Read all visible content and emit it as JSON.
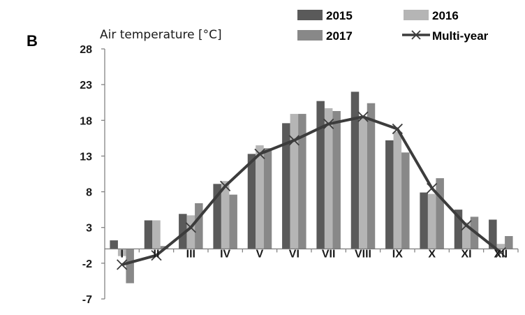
{
  "panel_label": "B",
  "chart_data": {
    "type": "bar",
    "ylabel": "Air temperature [°C]",
    "categories": [
      "I",
      "II",
      "III",
      "IV",
      "V",
      "VI",
      "VII",
      "VIII",
      "IX",
      "X",
      "XI",
      "XII"
    ],
    "yticks": [
      "28",
      "23",
      "18",
      "13",
      "8",
      "3",
      "-2",
      "-7"
    ],
    "ylim": [
      -7,
      28
    ],
    "series": [
      {
        "name": "2015",
        "kind": "bar",
        "color": "#5a5a5a",
        "values": [
          1.2,
          4.0,
          4.9,
          9.1,
          13.3,
          17.6,
          20.7,
          22.0,
          15.2,
          7.9,
          5.5,
          4.1
        ]
      },
      {
        "name": "2016",
        "kind": "bar",
        "color": "#b5b5b5",
        "values": [
          -1.0,
          4.0,
          4.7,
          9.5,
          14.5,
          18.9,
          19.7,
          18.5,
          16.4,
          7.7,
          3.7,
          0.7
        ]
      },
      {
        "name": "2017",
        "kind": "bar",
        "color": "#888888",
        "values": [
          -4.8,
          0.4,
          6.4,
          7.6,
          14.1,
          18.9,
          19.3,
          20.4,
          13.5,
          9.9,
          4.5,
          1.8
        ]
      },
      {
        "name": "Multi-year",
        "kind": "line",
        "color": "#3c3c3c",
        "values": [
          -2.2,
          -0.9,
          3.0,
          8.8,
          13.3,
          15.2,
          17.5,
          18.5,
          16.8,
          8.5,
          3.3,
          -0.5
        ]
      }
    ],
    "legend_position": "top-right",
    "grid": false
  }
}
